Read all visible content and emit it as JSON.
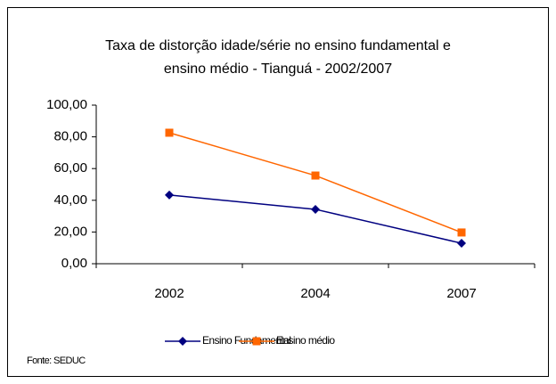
{
  "chart_data": {
    "type": "line",
    "title": [
      "Taxa de distorção idade/série no ensino fundamental e",
      "ensino médio - Tianguá -  2002/2007"
    ],
    "categories": [
      "2002",
      "2004",
      "2007"
    ],
    "series": [
      {
        "name": "Ensino Fundamental",
        "color": "#000080",
        "marker": "diamond",
        "values": [
          43.3,
          34.3,
          12.9
        ]
      },
      {
        "name": "Ensino médio",
        "color": "#ff6600",
        "marker": "square",
        "values": [
          82.6,
          55.6,
          19.7
        ]
      }
    ],
    "ylim": [
      0,
      100
    ],
    "yticks": [
      {
        "value": 0,
        "label": "0,00"
      },
      {
        "value": 20,
        "label": "20,00"
      },
      {
        "value": 40,
        "label": "40,00"
      },
      {
        "value": 60,
        "label": "60,00"
      },
      {
        "value": 80,
        "label": "80,00"
      },
      {
        "value": 100,
        "label": "100,00"
      }
    ],
    "grid": false,
    "legend": "bottom",
    "source": "Fonte: SEDUC"
  }
}
